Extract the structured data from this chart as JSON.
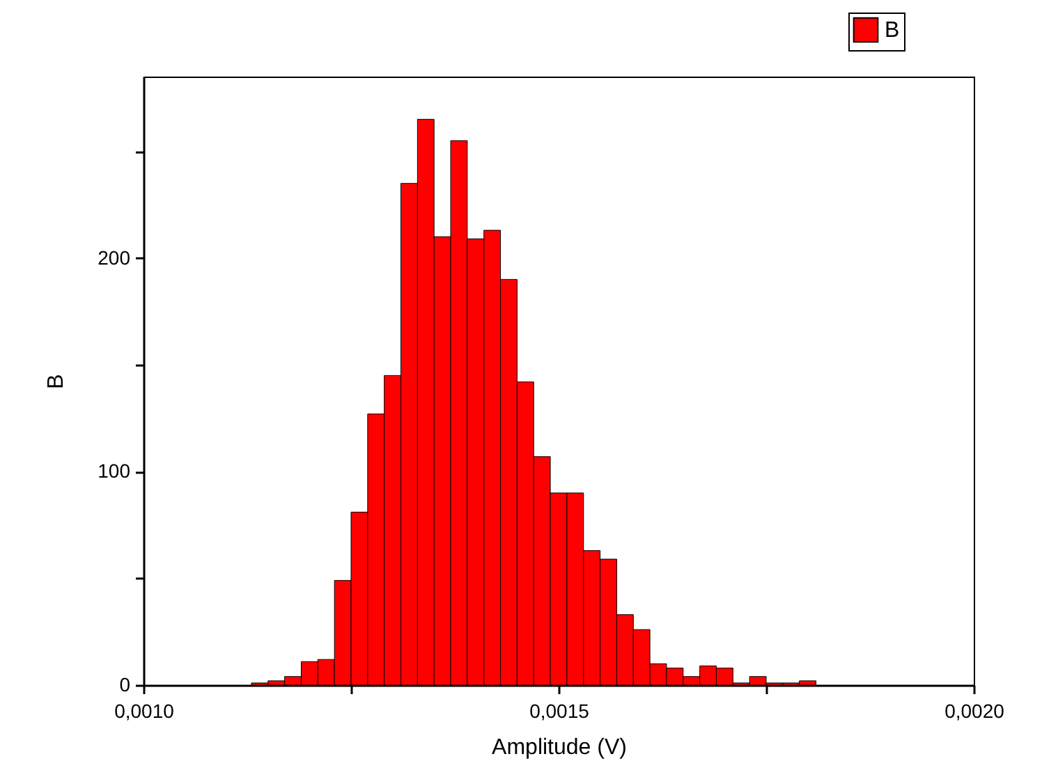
{
  "chart_data": {
    "type": "histogram",
    "xlabel": "Amplitude (V)",
    "ylabel": "B",
    "bins": [
      0.00113,
      0.00115,
      0.00117,
      0.00119,
      0.00121,
      0.00123,
      0.00125,
      0.00127,
      0.00129,
      0.00131,
      0.00133,
      0.00135,
      0.00137,
      0.00139,
      0.00141,
      0.00143,
      0.00145,
      0.00147,
      0.00149,
      0.00151,
      0.00153,
      0.00155,
      0.00157,
      0.00159,
      0.00161,
      0.00163,
      0.00165,
      0.00167,
      0.00169,
      0.00171,
      0.00173,
      0.00175,
      0.00177,
      0.00179,
      0.00181
    ],
    "series": [
      {
        "name": "B",
        "color": "#ff0000",
        "values": [
          1,
          2,
          4,
          11,
          12,
          49,
          81,
          127,
          145,
          235,
          265,
          210,
          255,
          209,
          213,
          190,
          142,
          107,
          90,
          90,
          63,
          59,
          33,
          26,
          10,
          8,
          4,
          9,
          8,
          1,
          4,
          1,
          1,
          2
        ]
      }
    ],
    "xlim": [
      0.001,
      0.002
    ],
    "xticks": [
      {
        "value": 0.001,
        "label": "0,0010"
      },
      {
        "value": 0.00125,
        "label": null
      },
      {
        "value": 0.0015,
        "label": "0,0015"
      },
      {
        "value": 0.00175,
        "label": null
      },
      {
        "value": 0.002,
        "label": "0,0020"
      }
    ],
    "ylim": [
      0,
      285
    ],
    "yticks": [
      0,
      {
        "value": 50,
        "label": null
      },
      100,
      {
        "value": 150,
        "label": null
      },
      200,
      {
        "value": 250,
        "label": null
      }
    ],
    "legend": "top right",
    "grid": false
  }
}
